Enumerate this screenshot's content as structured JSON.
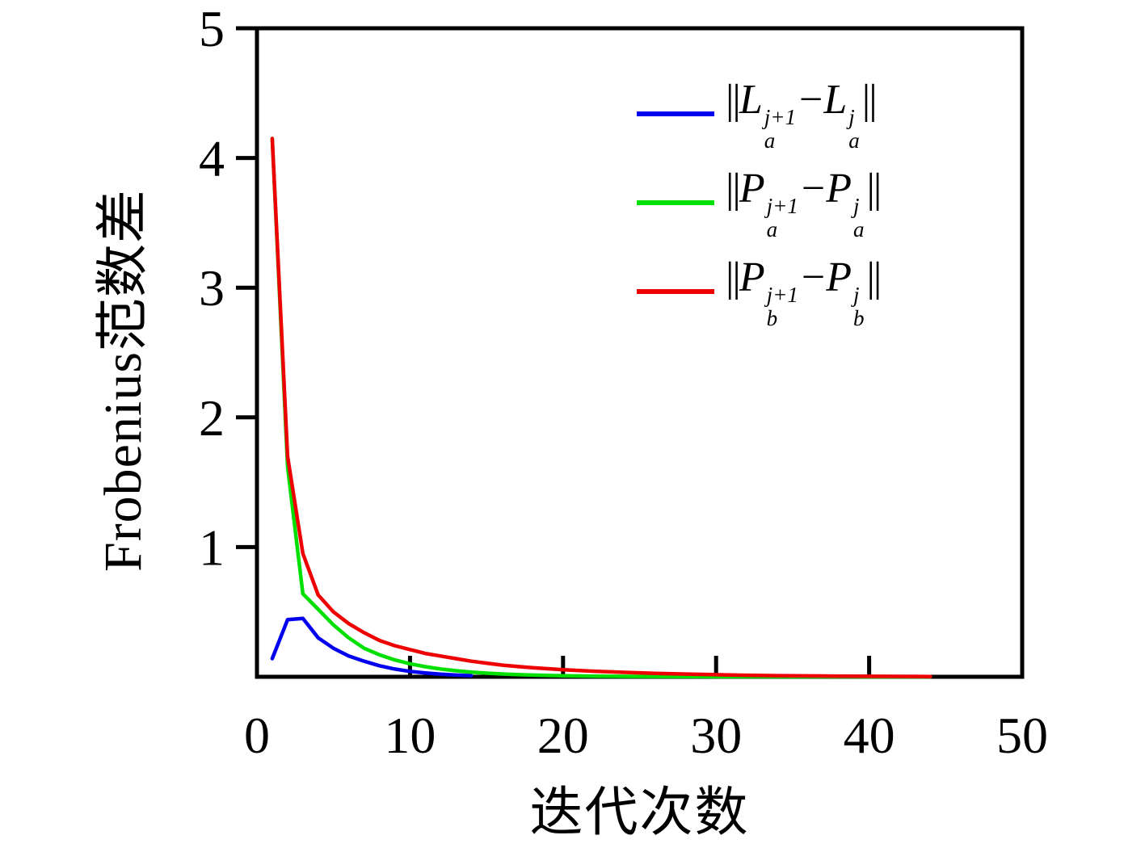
{
  "chart_data": {
    "type": "line",
    "title": "",
    "xlabel": "迭代次数",
    "ylabel": "Frobenius范数差",
    "xlim": [
      0,
      50
    ],
    "ylim": [
      0,
      5
    ],
    "xticks": [
      0,
      10,
      20,
      30,
      40,
      50
    ],
    "yticks": [
      1,
      2,
      3,
      4,
      5
    ],
    "grid": false,
    "legend_position": "upper right",
    "series": [
      {
        "name": "||L_a^{j+1}−L_a^{j}||",
        "color": "#0000ee",
        "points": [
          [
            1,
            0.14
          ],
          [
            2,
            0.44
          ],
          [
            3,
            0.45
          ],
          [
            4,
            0.3
          ],
          [
            5,
            0.22
          ],
          [
            6,
            0.16
          ],
          [
            7,
            0.12
          ],
          [
            8,
            0.085
          ],
          [
            9,
            0.06
          ],
          [
            10,
            0.042
          ],
          [
            11,
            0.03
          ],
          [
            12,
            0.02
          ],
          [
            13,
            0.013
          ],
          [
            14,
            0.009
          ]
        ]
      },
      {
        "name": "||P_a^{j+1}−P_a^{j}||",
        "color": "#00e000",
        "points": [
          [
            1,
            4.15
          ],
          [
            2,
            1.62
          ],
          [
            3,
            0.64
          ],
          [
            4,
            0.52
          ],
          [
            5,
            0.4
          ],
          [
            6,
            0.3
          ],
          [
            7,
            0.22
          ],
          [
            8,
            0.17
          ],
          [
            9,
            0.13
          ],
          [
            10,
            0.1
          ],
          [
            11,
            0.078
          ],
          [
            12,
            0.06
          ],
          [
            13,
            0.047
          ],
          [
            14,
            0.036
          ],
          [
            15,
            0.028
          ],
          [
            16,
            0.022
          ],
          [
            17,
            0.017
          ],
          [
            18,
            0.013
          ],
          [
            20,
            0.008
          ],
          [
            22,
            0.005
          ],
          [
            24,
            0.003
          ],
          [
            28,
            0.0015
          ],
          [
            32,
            0.0008
          ],
          [
            36,
            0.0004
          ],
          [
            40,
            0.0002
          ],
          [
            44,
            0.0001
          ]
        ]
      },
      {
        "name": "||P_b^{j+1}−P_b^{j}||",
        "color": "#ee0000",
        "points": [
          [
            1,
            4.15
          ],
          [
            2,
            1.7
          ],
          [
            3,
            0.95
          ],
          [
            4,
            0.63
          ],
          [
            5,
            0.5
          ],
          [
            6,
            0.41
          ],
          [
            7,
            0.34
          ],
          [
            8,
            0.28
          ],
          [
            9,
            0.24
          ],
          [
            10,
            0.21
          ],
          [
            11,
            0.18
          ],
          [
            12,
            0.16
          ],
          [
            13,
            0.14
          ],
          [
            14,
            0.12
          ],
          [
            15,
            0.105
          ],
          [
            16,
            0.09
          ],
          [
            17,
            0.08
          ],
          [
            18,
            0.07
          ],
          [
            19,
            0.062
          ],
          [
            20,
            0.055
          ],
          [
            22,
            0.043
          ],
          [
            24,
            0.034
          ],
          [
            26,
            0.027
          ],
          [
            28,
            0.021
          ],
          [
            30,
            0.016
          ],
          [
            32,
            0.012
          ],
          [
            34,
            0.009
          ],
          [
            36,
            0.007
          ],
          [
            38,
            0.005
          ],
          [
            40,
            0.004
          ],
          [
            42,
            0.003
          ],
          [
            44,
            0.002
          ]
        ]
      }
    ]
  },
  "legend": {
    "open": "||",
    "minus": "−",
    "close": "||",
    "items": [
      {
        "base1": "L",
        "sup1": "j+1",
        "sub1": "a",
        "base2": "L",
        "sup2": "j",
        "sub2": "a",
        "color": "#0000ee"
      },
      {
        "base1": "P",
        "sup1": "j+1",
        "sub1": "a",
        "base2": "P",
        "sup2": "j",
        "sub2": "a",
        "color": "#00e000"
      },
      {
        "base1": "P",
        "sup1": "j+1",
        "sub1": "b",
        "base2": "P",
        "sup2": "j",
        "sub2": "b",
        "color": "#ee0000"
      }
    ]
  }
}
